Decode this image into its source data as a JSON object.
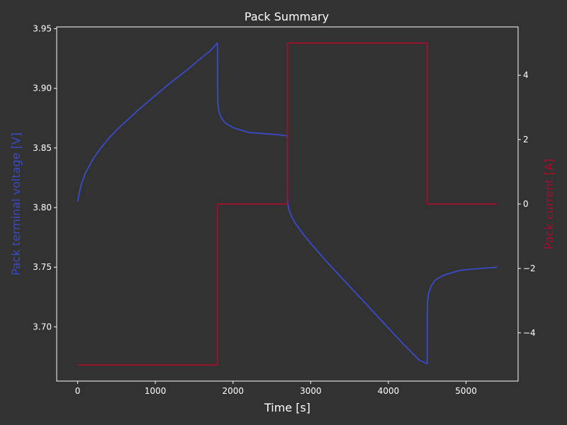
{
  "chart_data": {
    "type": "line",
    "title": "Pack Summary",
    "xlabel": "Time [s]",
    "ylabel_left": "Pack terminal voltage [V]",
    "ylabel_right": "Pack current [A]",
    "xlim": [
      -270,
      5670
    ],
    "ylim_left": [
      3.6545,
      3.9515
    ],
    "ylim_right": [
      -5.5,
      5.5
    ],
    "x_ticks": [
      0,
      1000,
      2000,
      3000,
      4000,
      5000
    ],
    "y_ticks_left": [
      3.7,
      3.75,
      3.8,
      3.85,
      3.9,
      3.95
    ],
    "y_ticks_left_labels": [
      "3.70",
      "3.75",
      "3.80",
      "3.85",
      "3.90",
      "3.95"
    ],
    "y_ticks_right": [
      -4,
      -2,
      0,
      2,
      4
    ],
    "y_ticks_right_labels": [
      "−4",
      "−2",
      "0",
      "2",
      "4"
    ],
    "grid": false,
    "legend": "none",
    "series": [
      {
        "axis": "left",
        "color": "#3a4bc8",
        "x": [
          0,
          20,
          50,
          100,
          200,
          300,
          400,
          500,
          600,
          800,
          1000,
          1200,
          1400,
          1600,
          1700,
          1800,
          1801,
          1805,
          1820,
          1850,
          1900,
          2000,
          2100,
          2200,
          2400,
          2600,
          2700,
          2701,
          2705,
          2720,
          2750,
          2800,
          2900,
          3000,
          3200,
          3400,
          3600,
          3800,
          4000,
          4200,
          4400,
          4500,
          4501,
          4505,
          4520,
          4550,
          4600,
          4700,
          4800,
          4900,
          5000,
          5200,
          5400
        ],
        "y": [
          3.805,
          3.812,
          3.82,
          3.829,
          3.841,
          3.85,
          3.858,
          3.865,
          3.871,
          3.883,
          3.894,
          3.905,
          3.915,
          3.926,
          3.931,
          3.938,
          3.9,
          3.887,
          3.88,
          3.875,
          3.871,
          3.867,
          3.865,
          3.863,
          3.862,
          3.861,
          3.86,
          3.81,
          3.803,
          3.798,
          3.793,
          3.787,
          3.778,
          3.77,
          3.755,
          3.741,
          3.727,
          3.713,
          3.699,
          3.685,
          3.672,
          3.669,
          3.705,
          3.722,
          3.729,
          3.734,
          3.739,
          3.743,
          3.745,
          3.747,
          3.748,
          3.749,
          3.75
        ]
      },
      {
        "axis": "right",
        "color": "#a50f2f",
        "x": [
          0,
          1800,
          1800,
          2700,
          2700,
          4500,
          4500,
          5400
        ],
        "y": [
          -5,
          -5,
          0,
          0,
          5,
          5,
          0,
          0
        ]
      }
    ]
  }
}
